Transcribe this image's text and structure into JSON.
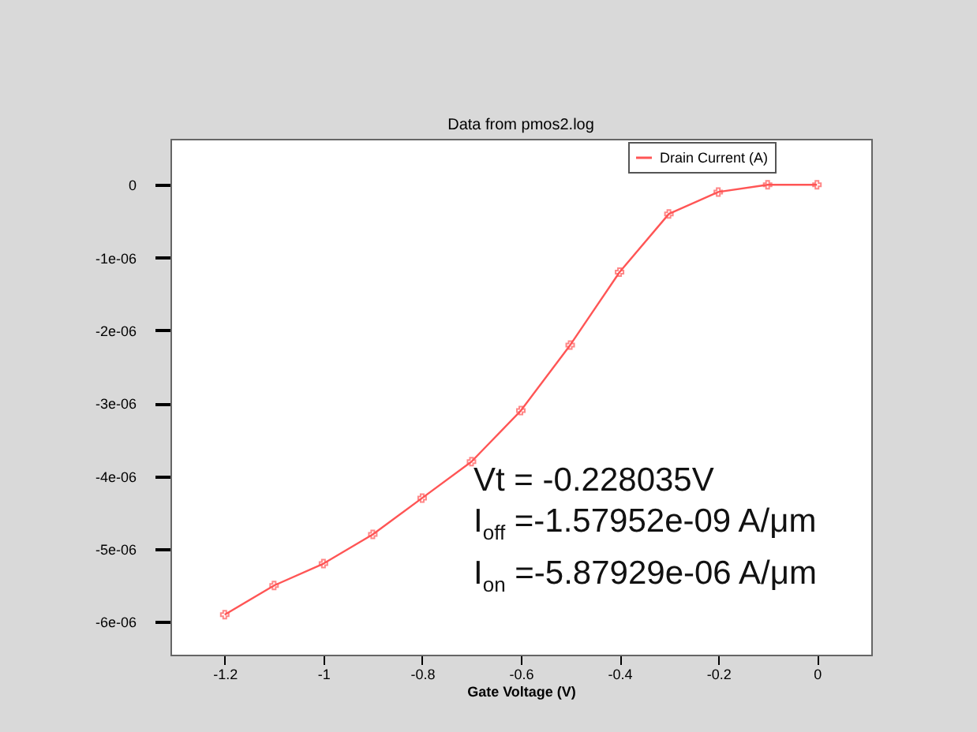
{
  "chart_data": {
    "type": "line",
    "title": "Data from pmos2.log",
    "xlabel": "Gate Voltage (V)",
    "x": [
      -1.2,
      -1.1,
      -1.0,
      -0.9,
      -0.8,
      -0.7,
      -0.6,
      -0.5,
      -0.4,
      -0.3,
      -0.2,
      -0.1,
      0
    ],
    "series": [
      {
        "name": "Drain Current (A)",
        "color": "#ff5555",
        "values": [
          -5.9e-06,
          -5.5e-06,
          -5.2e-06,
          -4.8e-06,
          -4.3e-06,
          -3.8e-06,
          -3.1e-06,
          -2.2e-06,
          -1.2e-06,
          -4e-07,
          -1e-07,
          0,
          0
        ]
      }
    ],
    "xlim": [
      -1.31,
      0.11
    ],
    "xticks": [
      -1.2,
      -1,
      -0.8,
      -0.6,
      -0.4,
      -0.2,
      0
    ],
    "ylim": [
      -6.45e-06,
      6.3e-07
    ],
    "yticks": [
      {
        "value": 0,
        "label": "0"
      },
      {
        "value": -1e-06,
        "label": "-1e-06"
      },
      {
        "value": -2e-06,
        "label": "-2e-06"
      },
      {
        "value": -3e-06,
        "label": "-3e-06"
      },
      {
        "value": -4e-06,
        "label": "-4e-06"
      },
      {
        "value": -5e-06,
        "label": "-5e-06"
      },
      {
        "value": -6e-06,
        "label": "-6e-06"
      }
    ],
    "grid": false,
    "legend": "top right",
    "marker": "cross",
    "line_style": "solid",
    "annotations": [
      "Vt = -0.228035V",
      "I$_{off}$ =-1.57952e-09 A/μm",
      "I$_{on}$ =-5.87929e-06 A/μm"
    ]
  }
}
